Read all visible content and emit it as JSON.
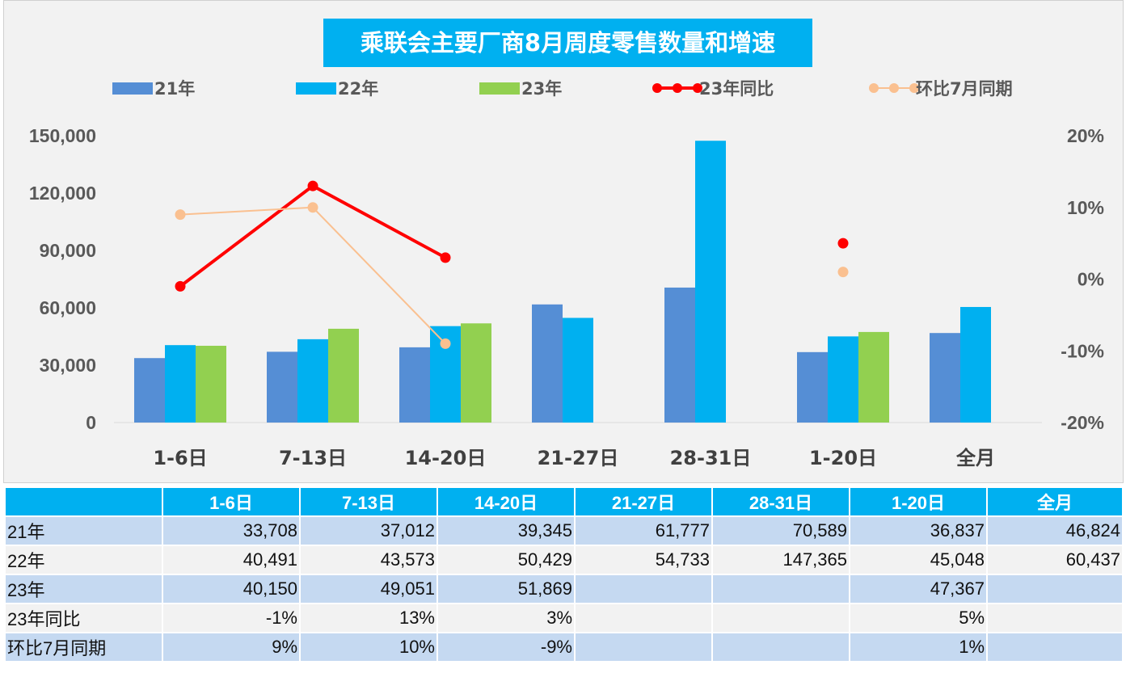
{
  "chart_data": {
    "type": "bar",
    "title": "乘联会主要厂商8月周度零售数量和增速",
    "categories": [
      "1-6日",
      "7-13日",
      "14-20日",
      "21-27日",
      "28-31日",
      "1-20日",
      "全月"
    ],
    "series": [
      {
        "name": "21年",
        "kind": "bar",
        "axis": "left",
        "color": "#558ed5",
        "values": [
          33708,
          37012,
          39345,
          61777,
          70589,
          36837,
          46824
        ]
      },
      {
        "name": "22年",
        "kind": "bar",
        "axis": "left",
        "color": "#00b0f0",
        "values": [
          40491,
          43573,
          50429,
          54733,
          147365,
          45048,
          60437
        ]
      },
      {
        "name": "23年",
        "kind": "bar",
        "axis": "left",
        "color": "#92d050",
        "values": [
          40150,
          49051,
          51869,
          null,
          null,
          47367,
          null
        ]
      },
      {
        "name": "23年同比",
        "kind": "line",
        "axis": "right",
        "color": "#ff0000",
        "values": [
          -1,
          13,
          3,
          null,
          null,
          5,
          null
        ]
      },
      {
        "name": "环比7月同期",
        "kind": "line",
        "axis": "right",
        "color": "#fac090",
        "values": [
          9,
          10,
          -9,
          null,
          null,
          1,
          null
        ]
      }
    ],
    "ylim": [
      0,
      150000
    ],
    "yticks": [
      "0",
      "30,000",
      "60,000",
      "90,000",
      "120,000",
      "150,000"
    ],
    "y2lim": [
      -20,
      20
    ],
    "y2ticks": [
      "-20%",
      "-10%",
      "0%",
      "10%",
      "20%"
    ],
    "legend": "top",
    "grid": false
  },
  "table": {
    "header": [
      "",
      "1-6日",
      "7-13日",
      "14-20日",
      "21-27日",
      "28-31日",
      "1-20日",
      "全月"
    ],
    "rows": [
      [
        "21年",
        "33,708",
        "37,012",
        "39,345",
        "61,777",
        "70,589",
        "36,837",
        "46,824"
      ],
      [
        "22年",
        "40,491",
        "43,573",
        "50,429",
        "54,733",
        "147,365",
        "45,048",
        "60,437"
      ],
      [
        "23年",
        "40,150",
        "49,051",
        "51,869",
        "",
        "",
        "47,367",
        ""
      ],
      [
        "23年同比",
        "-1%",
        "13%",
        "3%",
        "",
        "",
        "5%",
        ""
      ],
      [
        "环比7月同期",
        "9%",
        "10%",
        "-9%",
        "",
        "",
        "1%",
        ""
      ]
    ]
  }
}
